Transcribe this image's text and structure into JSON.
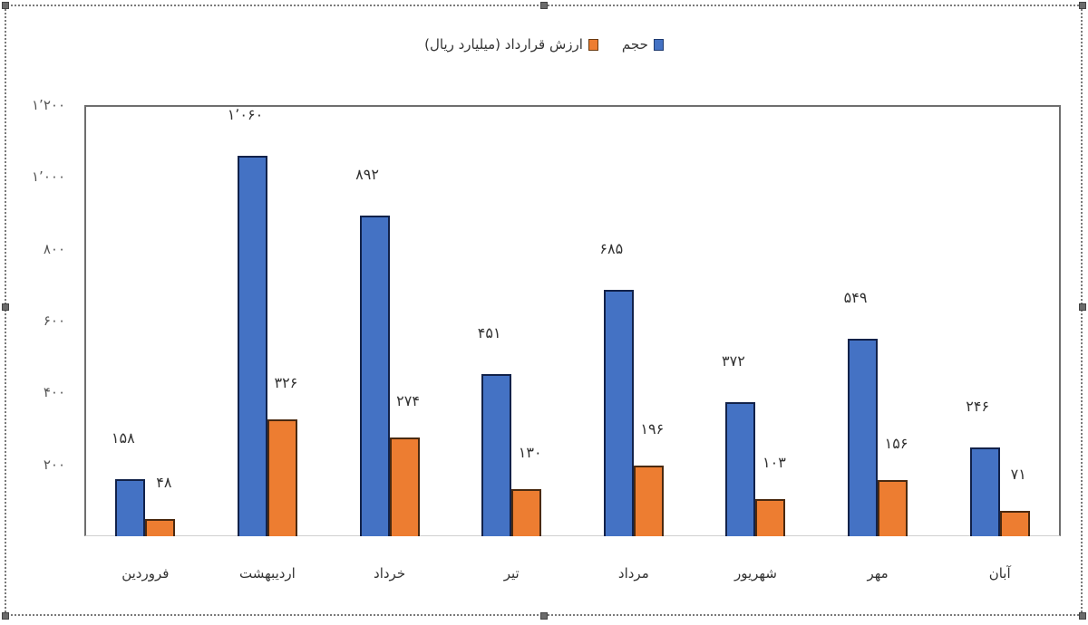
{
  "chart_data": {
    "type": "bar",
    "title": "",
    "xlabel": "",
    "ylabel": "",
    "ylim": [
      0,
      1200
    ],
    "yticks": [
      200,
      400,
      600,
      800,
      1000,
      1200
    ],
    "ytick_labels": [
      "۲۰۰",
      "۴۰۰",
      "۶۰۰",
      "۸۰۰",
      "۱٬۰۰۰",
      "۱٬۲۰۰"
    ],
    "grid": false,
    "legend_position": "top",
    "categories": [
      "فروردین",
      "اردیبهشت",
      "خرداد",
      "تیر",
      "مرداد",
      "شهریور",
      "مهر",
      "آبان"
    ],
    "series": [
      {
        "name": "حجم",
        "color": "#4472c4",
        "values": [
          158,
          1060,
          892,
          451,
          685,
          372,
          549,
          246
        ],
        "labels": [
          "۱۵۸",
          "۱٬۰۶۰",
          "۸۹۲",
          "۴۵۱",
          "۶۸۵",
          "۳۷۲",
          "۵۴۹",
          "۲۴۶"
        ]
      },
      {
        "name": "ارزش قرارداد (میلیارد ریال)",
        "color": "#ed7d31",
        "values": [
          48,
          326,
          274,
          130,
          196,
          103,
          156,
          71
        ],
        "labels": [
          "۴۸",
          "۳۲۶",
          "۲۷۴",
          "۱۳۰",
          "۱۹۶",
          "۱۰۳",
          "۱۵۶",
          "۷۱"
        ]
      }
    ]
  },
  "legend": {
    "items": [
      {
        "label": "حجم",
        "color": "#4472c4"
      },
      {
        "label": "ارزش قرارداد (میلیارد ریال)",
        "color": "#ed7d31"
      }
    ]
  }
}
